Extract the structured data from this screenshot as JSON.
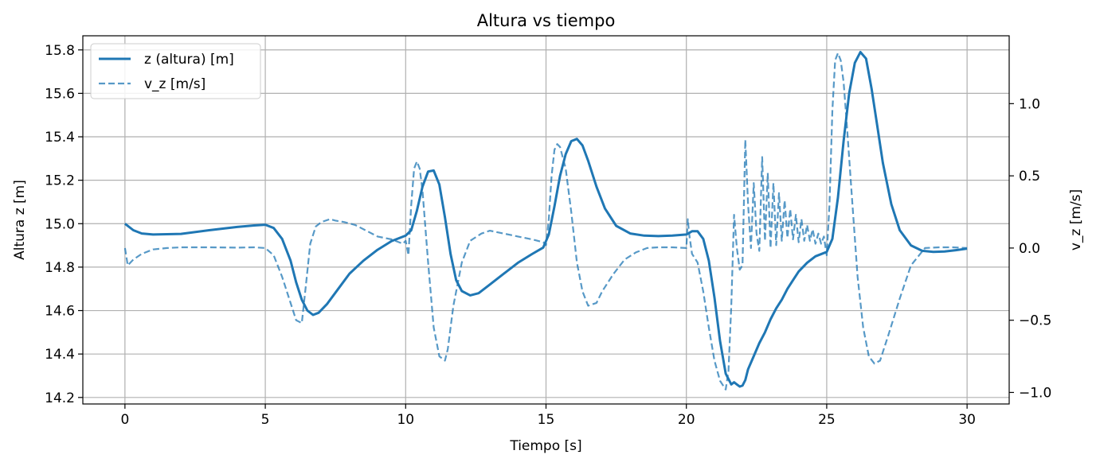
{
  "chart_data": {
    "type": "line",
    "title": "Altura vs tiempo",
    "xlabel": "Tiempo [s]",
    "ylabel_left": "Altura z [m]",
    "ylabel_right": "v_z [m/s]",
    "xlim": [
      -1.5,
      31.5
    ],
    "ylim_left": [
      14.17,
      15.865
    ],
    "ylim_right": [
      -1.08,
      1.47
    ],
    "xticks": [
      0,
      5,
      10,
      15,
      20,
      25,
      30
    ],
    "xtick_labels": [
      "0",
      "5",
      "10",
      "15",
      "20",
      "25",
      "30"
    ],
    "yticks_left": [
      14.2,
      14.4,
      14.6,
      14.8,
      15.0,
      15.2,
      15.4,
      15.6,
      15.8
    ],
    "ytick_labels_left": [
      "14.2",
      "14.4",
      "14.6",
      "14.8",
      "15.0",
      "15.2",
      "15.4",
      "15.6",
      "15.8"
    ],
    "yticks_right": [
      -1.0,
      -0.5,
      0.0,
      0.5,
      1.0
    ],
    "ytick_labels_right": [
      "−1.0",
      "−0.5",
      "0.0",
      "0.5",
      "1.0"
    ],
    "grid": true,
    "legend_position": "top-left",
    "series": [
      {
        "name": "z (altura) [m]",
        "axis": "left",
        "style": "solid",
        "color": "#1f77b4",
        "x": [
          0,
          0.3,
          0.6,
          1.0,
          2.0,
          3.0,
          4.0,
          4.6,
          5.0,
          5.3,
          5.6,
          5.9,
          6.1,
          6.3,
          6.5,
          6.7,
          6.9,
          7.2,
          7.6,
          8.0,
          8.5,
          9.0,
          9.5,
          10.0,
          10.2,
          10.4,
          10.6,
          10.8,
          11.0,
          11.2,
          11.4,
          11.6,
          11.8,
          12.0,
          12.3,
          12.6,
          13.0,
          13.5,
          14.0,
          14.5,
          14.9,
          15.1,
          15.3,
          15.5,
          15.7,
          15.9,
          16.1,
          16.3,
          16.5,
          16.8,
          17.1,
          17.5,
          18.0,
          18.5,
          19.0,
          19.5,
          20.0,
          20.2,
          20.4,
          20.6,
          20.8,
          21.0,
          21.2,
          21.4,
          21.6,
          21.7,
          21.8,
          21.9,
          22.0,
          22.1,
          22.2,
          22.4,
          22.6,
          22.8,
          23.0,
          23.2,
          23.4,
          23.6,
          23.8,
          24.0,
          24.3,
          24.6,
          25.0,
          25.2,
          25.4,
          25.6,
          25.8,
          26.0,
          26.2,
          26.4,
          26.6,
          26.8,
          27.0,
          27.3,
          27.6,
          28.0,
          28.4,
          28.8,
          29.2,
          29.6,
          30.0
        ],
        "values": [
          15.0,
          14.97,
          14.955,
          14.95,
          14.953,
          14.97,
          14.985,
          14.992,
          14.995,
          14.98,
          14.93,
          14.83,
          14.73,
          14.65,
          14.6,
          14.58,
          14.59,
          14.63,
          14.7,
          14.77,
          14.83,
          14.88,
          14.92,
          14.945,
          14.97,
          15.06,
          15.17,
          15.24,
          15.245,
          15.18,
          15.03,
          14.86,
          14.74,
          14.69,
          14.67,
          14.68,
          14.72,
          14.77,
          14.82,
          14.86,
          14.89,
          14.95,
          15.08,
          15.22,
          15.32,
          15.38,
          15.39,
          15.36,
          15.29,
          15.17,
          15.07,
          14.99,
          14.955,
          14.945,
          14.943,
          14.945,
          14.95,
          14.965,
          14.965,
          14.93,
          14.83,
          14.66,
          14.46,
          14.31,
          14.26,
          14.27,
          14.26,
          14.25,
          14.255,
          14.28,
          14.33,
          14.39,
          14.45,
          14.5,
          14.56,
          14.61,
          14.65,
          14.7,
          14.74,
          14.78,
          14.82,
          14.85,
          14.87,
          14.93,
          15.12,
          15.38,
          15.6,
          15.74,
          15.79,
          15.76,
          15.62,
          15.45,
          15.28,
          15.09,
          14.97,
          14.9,
          14.875,
          14.87,
          14.872,
          14.878,
          14.885
        ]
      },
      {
        "name": "v_z [m/s]",
        "axis": "right",
        "style": "dashed",
        "color": "#1f77b4",
        "opacity": 0.75,
        "x": [
          0,
          0.1,
          0.3,
          0.6,
          1.0,
          1.5,
          2.0,
          3.0,
          4.0,
          4.6,
          5.0,
          5.3,
          5.6,
          5.9,
          6.1,
          6.3,
          6.45,
          6.6,
          6.8,
          7.0,
          7.3,
          7.5,
          7.8,
          8.2,
          8.6,
          9.0,
          9.5,
          9.9,
          10.0,
          10.1,
          10.2,
          10.3,
          10.4,
          10.5,
          10.6,
          10.8,
          11.0,
          11.2,
          11.4,
          11.5,
          11.7,
          12.0,
          12.3,
          12.7,
          13.0,
          13.5,
          14.0,
          14.5,
          14.9,
          15.0,
          15.1,
          15.2,
          15.3,
          15.4,
          15.5,
          15.7,
          15.9,
          16.1,
          16.3,
          16.5,
          16.8,
          17.0,
          17.4,
          17.8,
          18.2,
          18.6,
          19.0,
          19.5,
          20.0,
          20.05,
          20.1,
          20.2,
          20.4,
          20.6,
          20.8,
          21.0,
          21.2,
          21.4,
          21.5,
          21.6,
          21.7,
          21.8,
          21.9,
          22.0,
          22.1,
          22.2,
          22.3,
          22.4,
          22.5,
          22.6,
          22.7,
          22.8,
          22.9,
          23.0,
          23.1,
          23.2,
          23.3,
          23.4,
          23.5,
          23.6,
          23.7,
          23.8,
          23.9,
          24.0,
          24.1,
          24.2,
          24.3,
          24.4,
          24.5,
          24.6,
          24.7,
          24.8,
          24.9,
          25.0,
          25.1,
          25.2,
          25.3,
          25.4,
          25.5,
          25.6,
          25.7,
          25.9,
          26.1,
          26.3,
          26.5,
          26.7,
          26.9,
          27.2,
          27.6,
          28.0,
          28.5,
          29.0,
          29.5,
          30.0
        ],
        "values": [
          0.0,
          -0.12,
          -0.08,
          -0.04,
          -0.01,
          0.0,
          0.005,
          0.005,
          0.003,
          0.005,
          0.0,
          -0.05,
          -0.2,
          -0.38,
          -0.5,
          -0.52,
          -0.25,
          0.03,
          0.15,
          0.18,
          0.2,
          0.19,
          0.18,
          0.16,
          0.12,
          0.08,
          0.06,
          0.03,
          0.05,
          -0.05,
          0.3,
          0.55,
          0.6,
          0.55,
          0.4,
          -0.1,
          -0.55,
          -0.75,
          -0.78,
          -0.7,
          -0.4,
          -0.1,
          0.05,
          0.1,
          0.12,
          0.1,
          0.08,
          0.06,
          0.04,
          0.02,
          0.2,
          0.5,
          0.68,
          0.72,
          0.7,
          0.55,
          0.25,
          -0.1,
          -0.3,
          -0.4,
          -0.38,
          -0.3,
          -0.18,
          -0.08,
          -0.03,
          0.0,
          0.005,
          0.005,
          0.0,
          0.2,
          0.1,
          -0.04,
          -0.1,
          -0.3,
          -0.55,
          -0.78,
          -0.92,
          -0.98,
          -0.85,
          -0.4,
          0.23,
          0.0,
          -0.15,
          -0.12,
          0.75,
          0.3,
          0.0,
          0.45,
          0.1,
          -0.02,
          0.63,
          0.05,
          0.52,
          0.0,
          0.45,
          0.02,
          0.38,
          0.05,
          0.33,
          0.07,
          0.27,
          0.06,
          0.23,
          0.04,
          0.2,
          0.05,
          0.16,
          0.05,
          0.13,
          0.03,
          0.1,
          0.03,
          0.08,
          -0.05,
          0.3,
          0.95,
          1.3,
          1.35,
          1.3,
          1.15,
          0.9,
          0.35,
          -0.2,
          -0.55,
          -0.75,
          -0.8,
          -0.78,
          -0.6,
          -0.35,
          -0.12,
          0.0,
          0.005,
          0.005,
          0.0
        ]
      }
    ]
  }
}
